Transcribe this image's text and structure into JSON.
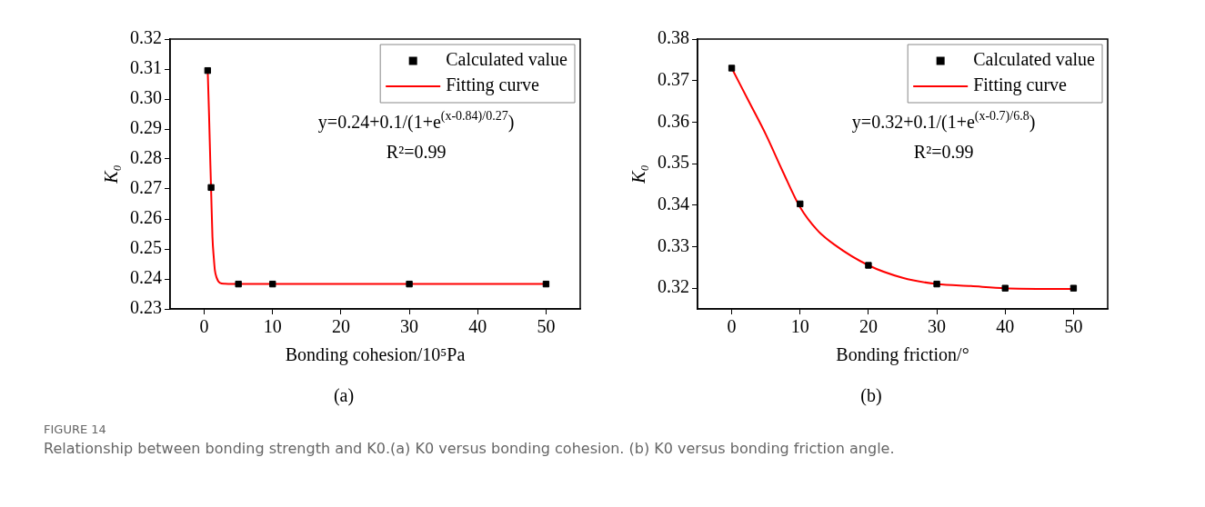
{
  "chart_data": [
    {
      "type": "scatter",
      "xlabel": "Bonding cohesion/10⁵Pa",
      "ylabel": "K₀",
      "xlim": [
        -5,
        55
      ],
      "xticks": [
        0,
        10,
        20,
        30,
        40,
        50
      ],
      "ylim": [
        0.23,
        0.32
      ],
      "yticks": [
        0.23,
        0.24,
        0.25,
        0.26,
        0.27,
        0.28,
        0.29,
        {
          "value": 0.3,
          "label": "0.30"
        },
        0.31,
        0.32
      ],
      "grid": false,
      "legend": "top right",
      "annotations": [
        "y=0.24+0.1/(1+e$^{(x-0.84)/0.27}$)",
        "R²=0.99",
        "(a)"
      ],
      "series": [
        {
          "name": "Calculated value",
          "marker": "square",
          "color": "#000000",
          "x": [
            0.5,
            1,
            5,
            10,
            30,
            50
          ],
          "values": [
            0.3095,
            0.2705,
            0.2383,
            0.2383,
            0.2383,
            0.2383
          ]
        },
        {
          "name": "Fitting curve",
          "type": "line",
          "marker": "none",
          "color": "#ff0000",
          "x": [
            0.5,
            0.7,
            0.9,
            1.0,
            1.2,
            1.4,
            1.55,
            1.8,
            2.3,
            3,
            5,
            50
          ],
          "values": [
            0.31,
            0.295,
            0.278,
            0.27,
            0.254,
            0.247,
            0.243,
            0.2405,
            0.2387,
            0.2384,
            0.2383,
            0.2383
          ]
        }
      ]
    },
    {
      "type": "scatter",
      "xlabel": "Bonding friction/°",
      "ylabel": "K₀",
      "xlim": [
        -5,
        55
      ],
      "xticks": [
        0,
        10,
        20,
        30,
        40,
        50
      ],
      "ylim": [
        0.315,
        0.38
      ],
      "yticks": [
        0.32,
        0.33,
        0.34,
        0.35,
        0.36,
        0.37,
        0.38
      ],
      "grid": false,
      "legend": "top right",
      "annotations": [
        "y=0.32+0.1/(1+e$^{(x-0.7)/6.8}$)",
        "R²=0.99",
        "(b)",
        "FIGURE 14",
        "Relationship between bonding strength and K0.(a) K0 versus bonding cohesion. (b) K0 versus bonding friction angle."
      ],
      "series": [
        {
          "name": "Calculated value",
          "marker": "square",
          "color": "#000000",
          "x": [
            0,
            10,
            20,
            30,
            40,
            50
          ],
          "values": [
            0.373,
            0.3403,
            0.3255,
            0.321,
            0.32,
            0.32
          ]
        },
        {
          "name": "Fitting curve",
          "type": "line",
          "marker": "none",
          "color": "#ff0000",
          "x": [
            0,
            2.5,
            5,
            7.5,
            10,
            12.5,
            15,
            20,
            25,
            30,
            35,
            40,
            50
          ],
          "values": [
            0.373,
            0.365,
            0.357,
            0.348,
            0.3395,
            0.334,
            0.3305,
            0.3255,
            0.3225,
            0.321,
            0.3205,
            0.32,
            0.3198
          ]
        }
      ]
    }
  ]
}
